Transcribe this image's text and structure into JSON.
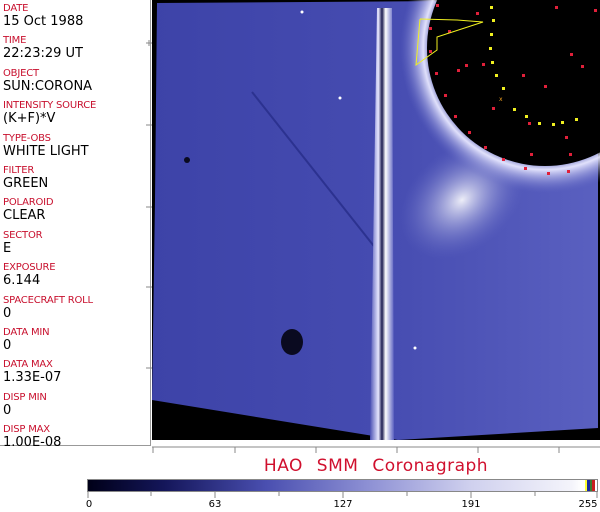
{
  "header_fields": [
    {
      "label": "DATE",
      "value": "15 Oct 1988"
    },
    {
      "label": "TIME",
      "value": "22:23:29 UT"
    },
    {
      "label": "OBJECT",
      "value": "SUN:CORONA"
    },
    {
      "label": "INTENSITY SOURCE",
      "value": "(K+F)*V"
    },
    {
      "label": "TYPE-OBS",
      "value": "WHITE LIGHT"
    },
    {
      "label": "FILTER",
      "value": "GREEN"
    },
    {
      "label": "POLAROID",
      "value": "CLEAR"
    },
    {
      "label": "SECTOR",
      "value": "E"
    },
    {
      "label": "EXPOSURE",
      "value": "6.144"
    },
    {
      "label": "SPACECRAFT ROLL",
      "value": "0"
    },
    {
      "label": "DATA MIN",
      "value": "0"
    },
    {
      "label": "DATA MAX",
      "value": "1.33E-07"
    },
    {
      "label": "DISP MIN",
      "value": "0"
    },
    {
      "label": "DISP MAX",
      "value": "1.00E-08"
    }
  ],
  "title": "HAO  SMM  Coronagraph",
  "colorbar": {
    "labels": [
      "0",
      "63",
      "127",
      "191",
      "255"
    ],
    "range": [
      0,
      255
    ],
    "colors": {
      "low": "#000018",
      "mid": "#4a4fb0",
      "high": "#ffffff",
      "marker_yellow": "#ffff33",
      "marker_blue": "#1a2aa0",
      "marker_green": "#3a7a30",
      "marker_red": "#c81e1e"
    }
  },
  "image": {
    "colormap": "blue-white",
    "occulter_color": "#000000",
    "marker_colors": {
      "red": "#e0203a",
      "yellow": "#f0f020"
    }
  }
}
